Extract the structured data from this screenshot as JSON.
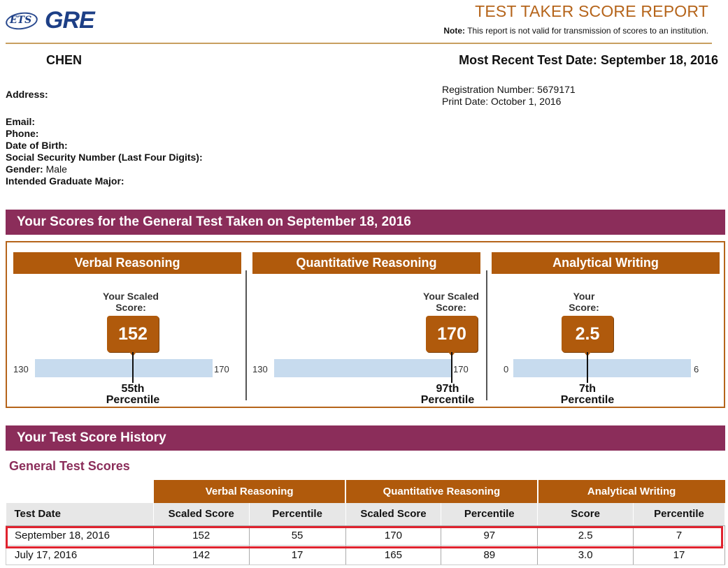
{
  "header": {
    "logo_ets": "ETS",
    "logo_gre": "GRE",
    "title": "TEST TAKER SCORE REPORT",
    "note_label": "Note:",
    "note_text": "This report is not valid for transmission of scores to an institution."
  },
  "person": {
    "name": "CHEN",
    "recent_test_date_label": "Most Recent Test Date:",
    "recent_test_date": "September 18, 2016",
    "registration_label": "Registration Number:",
    "registration_number": "5679171",
    "print_date_label": "Print Date:",
    "print_date": "October 1, 2016",
    "address_label": "Address:",
    "email_label": "Email:",
    "phone_label": "Phone:",
    "dob_label": "Date of Birth:",
    "ssn_label": "Social Security Number (Last Four Digits):",
    "gender_label": "Gender:",
    "gender": "Male",
    "major_label": "Intended Graduate Major:"
  },
  "scores_section": {
    "title": "Your Scores for the General Test Taken on September 18, 2016",
    "panels": [
      {
        "title": "Verbal Reasoning",
        "score_label_1": "Your Scaled",
        "score_label_2": "Score:",
        "score": "152",
        "min": "130",
        "max": "170",
        "percentile_rank": "55th",
        "percentile_word": "Percentile",
        "score_fraction": 0.55
      },
      {
        "title": "Quantitative Reasoning",
        "score_label_1": "Your Scaled",
        "score_label_2": "Score:",
        "score": "170",
        "min": "130",
        "max": "170",
        "percentile_rank": "97th",
        "percentile_word": "Percentile",
        "score_fraction": 1.0
      },
      {
        "title": "Analytical Writing",
        "score_label_1": "Your",
        "score_label_2": "Score:",
        "score": "2.5",
        "min": "0",
        "max": "6",
        "percentile_rank": "7th",
        "percentile_word": "Percentile",
        "score_fraction": 0.42
      }
    ]
  },
  "history_section": {
    "title": "Your Test Score History",
    "subtitle": "General Test Scores",
    "groups": [
      "Verbal Reasoning",
      "Quantitative Reasoning",
      "Analytical Writing"
    ],
    "columns": [
      "Test Date",
      "Scaled Score",
      "Percentile",
      "Scaled Score",
      "Percentile",
      "Score",
      "Percentile"
    ],
    "rows": [
      [
        "September 18, 2016",
        "152",
        "55",
        "170",
        "97",
        "2.5",
        "7"
      ],
      [
        "July 17, 2016",
        "142",
        "17",
        "165",
        "89",
        "3.0",
        "17"
      ]
    ],
    "highlighted_row": 0,
    "highlight_color": "#e0232f"
  },
  "colors": {
    "brand_purple": "#8b2d5a",
    "brand_orange": "#b05a0c",
    "bar_blue": "#c7dbee",
    "ets_blue": "#1d3f86"
  }
}
